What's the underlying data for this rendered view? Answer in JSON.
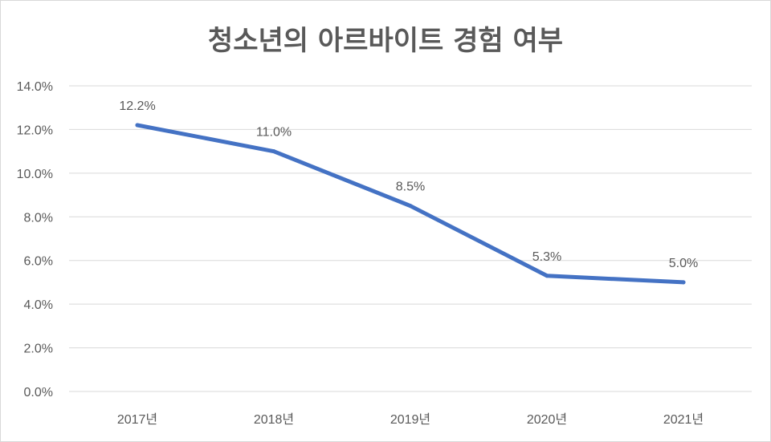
{
  "chart_data": {
    "type": "line",
    "title": "청소년의 아르바이트 경험 여부",
    "categories": [
      "2017년",
      "2018년",
      "2019년",
      "2020년",
      "2021년"
    ],
    "series": [
      {
        "values": [
          12.2,
          11.0,
          8.5,
          5.3,
          5.0
        ],
        "labels": [
          "12.2%",
          "11.0%",
          "8.5%",
          "5.3%",
          "5.0%"
        ],
        "color": "#4472c4"
      }
    ],
    "ylim": [
      0,
      14
    ],
    "yticks": [
      "0.0%",
      "2.0%",
      "4.0%",
      "6.0%",
      "8.0%",
      "10.0%",
      "12.0%",
      "14.0%"
    ],
    "grid": true,
    "legend": "none"
  }
}
